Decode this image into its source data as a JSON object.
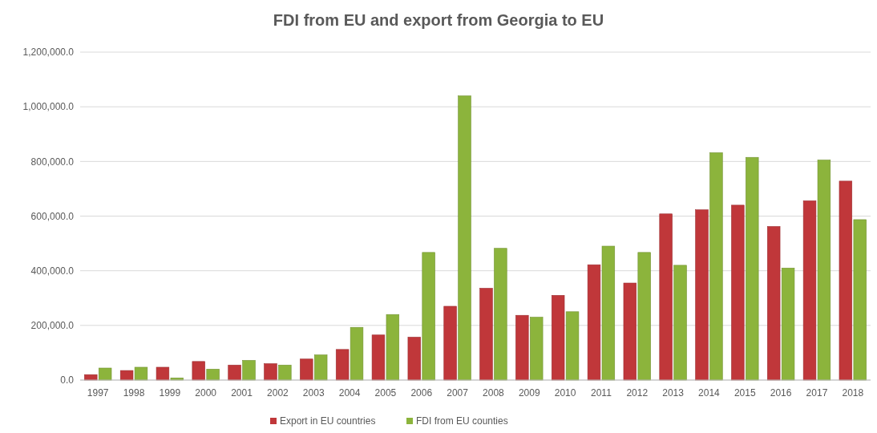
{
  "chart_data": {
    "type": "bar",
    "title": "FDI from EU and export from Georgia to EU",
    "categories": [
      "1997",
      "1998",
      "1999",
      "2000",
      "2001",
      "2002",
      "2003",
      "2004",
      "2005",
      "2006",
      "2007",
      "2008",
      "2009",
      "2010",
      "2011",
      "2012",
      "2013",
      "2014",
      "2015",
      "2016",
      "2017",
      "2018"
    ],
    "series": [
      {
        "name": "Export in EU countries",
        "color": "#c0373a",
        "values": [
          20000,
          35000,
          47000,
          68000,
          55000,
          60000,
          77000,
          112000,
          165000,
          157000,
          270000,
          336000,
          237000,
          310000,
          422000,
          355000,
          608000,
          623000,
          640000,
          562000,
          656000,
          728000
        ]
      },
      {
        "name": "FDI from EU counties",
        "color": "#8cb43c",
        "values": [
          44000,
          47000,
          8000,
          40000,
          72000,
          55000,
          92000,
          193000,
          240000,
          467000,
          1040000,
          482000,
          230000,
          250000,
          490000,
          467000,
          420000,
          832000,
          815000,
          410000,
          805000,
          587000
        ]
      }
    ],
    "ylim": [
      0,
      1200000
    ],
    "yticks": [
      {
        "value": 0,
        "label": "0.0"
      },
      {
        "value": 200000,
        "label": "200,000.0"
      },
      {
        "value": 400000,
        "label": "400,000.0"
      },
      {
        "value": 600000,
        "label": "600,000.0"
      },
      {
        "value": 800000,
        "label": "800,000.0"
      },
      {
        "value": 1000000,
        "label": "1,000,000.0"
      },
      {
        "value": 1200000,
        "label": "1,200,000.0"
      }
    ],
    "grid": "y",
    "legend": "bottom"
  }
}
